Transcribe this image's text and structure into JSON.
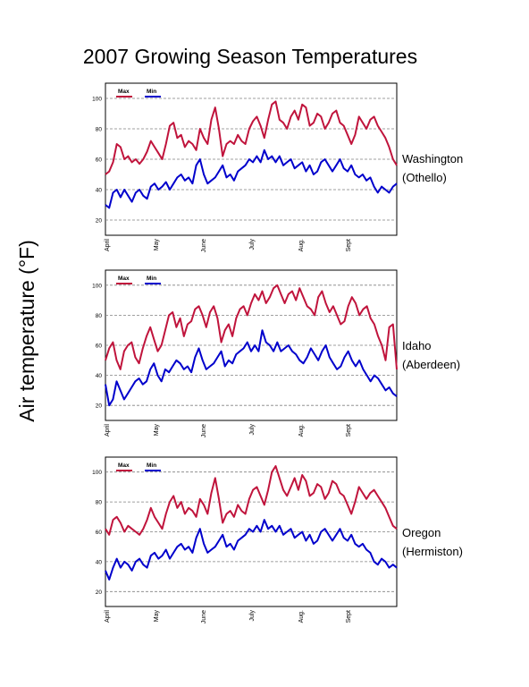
{
  "title": "2007 Growing Season Temperatures",
  "ylabel": "Air temperature (°F)",
  "colors": {
    "max": "#c0143c",
    "min": "#0000cc",
    "grid": "#808080"
  },
  "chart_data": [
    {
      "type": "line",
      "site": [
        "Washington",
        "(Othello)"
      ],
      "x_tick_labels": [
        "April",
        "May",
        "June",
        "July",
        "Aug.",
        "Sept"
      ],
      "y_ticks": [
        20,
        40,
        60,
        80,
        100
      ],
      "ylim": [
        10,
        110
      ],
      "grid": "horizontal dashed",
      "legend": "top-left",
      "series": [
        {
          "name": "Max",
          "color": "#c0143c",
          "values": [
            50,
            52,
            58,
            70,
            68,
            60,
            62,
            58,
            60,
            57,
            60,
            65,
            72,
            68,
            64,
            60,
            70,
            82,
            84,
            74,
            76,
            68,
            72,
            70,
            66,
            80,
            74,
            70,
            86,
            94,
            80,
            62,
            70,
            72,
            70,
            76,
            72,
            70,
            80,
            85,
            88,
            82,
            74,
            86,
            96,
            98,
            86,
            84,
            80,
            88,
            92,
            86,
            96,
            94,
            82,
            84,
            90,
            88,
            80,
            84,
            90,
            92,
            84,
            82,
            76,
            70,
            76,
            88,
            84,
            80,
            86,
            88,
            82,
            78,
            74,
            68,
            60,
            56
          ]
        },
        {
          "name": "Min",
          "color": "#0000cc",
          "values": [
            30,
            28,
            38,
            40,
            35,
            40,
            36,
            32,
            38,
            40,
            36,
            34,
            42,
            44,
            40,
            42,
            45,
            40,
            44,
            48,
            50,
            46,
            48,
            44,
            56,
            60,
            50,
            44,
            46,
            48,
            52,
            56,
            48,
            50,
            46,
            52,
            54,
            56,
            60,
            58,
            62,
            58,
            66,
            60,
            62,
            58,
            62,
            56,
            58,
            60,
            54,
            56,
            58,
            52,
            56,
            50,
            52,
            58,
            60,
            56,
            52,
            56,
            60,
            54,
            52,
            56,
            50,
            48,
            50,
            46,
            48,
            42,
            38,
            42,
            40,
            38,
            42,
            44
          ]
        }
      ]
    },
    {
      "type": "line",
      "site": [
        "Idaho",
        "(Aberdeen)"
      ],
      "x_tick_labels": [
        "April",
        "May",
        "June",
        "July",
        "Aug.",
        "Sept"
      ],
      "y_ticks": [
        20,
        40,
        60,
        80,
        100
      ],
      "ylim": [
        10,
        110
      ],
      "grid": "horizontal dashed",
      "legend": "top-left",
      "series": [
        {
          "name": "Max",
          "color": "#c0143c",
          "values": [
            50,
            58,
            62,
            50,
            44,
            56,
            60,
            62,
            52,
            48,
            58,
            66,
            72,
            64,
            56,
            60,
            70,
            80,
            82,
            72,
            78,
            66,
            74,
            76,
            84,
            86,
            80,
            72,
            82,
            86,
            78,
            62,
            70,
            74,
            66,
            78,
            84,
            86,
            80,
            88,
            94,
            90,
            96,
            88,
            92,
            98,
            100,
            94,
            88,
            94,
            96,
            90,
            98,
            92,
            86,
            84,
            80,
            92,
            96,
            88,
            82,
            86,
            80,
            74,
            76,
            86,
            92,
            88,
            80,
            84,
            86,
            78,
            74,
            66,
            60,
            50,
            72,
            74,
            44
          ]
        },
        {
          "name": "Min",
          "color": "#0000cc",
          "values": [
            34,
            20,
            24,
            36,
            30,
            24,
            28,
            32,
            36,
            38,
            34,
            36,
            44,
            48,
            40,
            36,
            44,
            42,
            46,
            50,
            48,
            44,
            46,
            42,
            52,
            58,
            50,
            44,
            46,
            48,
            52,
            56,
            46,
            50,
            48,
            54,
            56,
            58,
            62,
            56,
            60,
            56,
            70,
            62,
            60,
            56,
            62,
            56,
            58,
            60,
            56,
            54,
            50,
            48,
            52,
            58,
            54,
            50,
            56,
            60,
            52,
            48,
            44,
            46,
            52,
            56,
            50,
            46,
            50,
            44,
            40,
            36,
            40,
            38,
            34,
            30,
            32,
            28,
            26
          ]
        }
      ]
    },
    {
      "type": "line",
      "site": [
        "Oregon",
        "(Hermiston)"
      ],
      "x_tick_labels": [
        "April",
        "May",
        "June",
        "July",
        "Aug.",
        "Sept"
      ],
      "y_ticks": [
        20,
        40,
        60,
        80,
        100
      ],
      "ylim": [
        10,
        110
      ],
      "grid": "horizontal dashed",
      "legend": "top-left",
      "series": [
        {
          "name": "Max",
          "color": "#c0143c",
          "values": [
            62,
            58,
            68,
            70,
            66,
            60,
            64,
            62,
            60,
            58,
            62,
            68,
            76,
            70,
            66,
            62,
            72,
            80,
            84,
            76,
            80,
            72,
            76,
            74,
            70,
            82,
            78,
            72,
            86,
            96,
            82,
            66,
            72,
            74,
            70,
            78,
            74,
            72,
            82,
            88,
            90,
            84,
            78,
            88,
            100,
            104,
            96,
            88,
            84,
            90,
            96,
            88,
            98,
            94,
            84,
            86,
            92,
            90,
            82,
            86,
            94,
            92,
            86,
            84,
            78,
            72,
            80,
            90,
            86,
            82,
            86,
            88,
            84,
            80,
            76,
            70,
            64,
            62
          ]
        },
        {
          "name": "Min",
          "color": "#0000cc",
          "values": [
            34,
            28,
            36,
            42,
            36,
            40,
            38,
            34,
            40,
            42,
            38,
            36,
            44,
            46,
            42,
            44,
            48,
            42,
            46,
            50,
            52,
            48,
            50,
            46,
            56,
            62,
            52,
            46,
            48,
            50,
            54,
            58,
            50,
            52,
            48,
            54,
            56,
            58,
            62,
            60,
            64,
            60,
            68,
            62,
            64,
            60,
            64,
            58,
            60,
            62,
            56,
            58,
            60,
            54,
            58,
            52,
            54,
            60,
            62,
            58,
            54,
            58,
            62,
            56,
            54,
            58,
            52,
            50,
            52,
            48,
            46,
            40,
            38,
            42,
            40,
            36,
            38,
            36
          ]
        }
      ]
    }
  ]
}
